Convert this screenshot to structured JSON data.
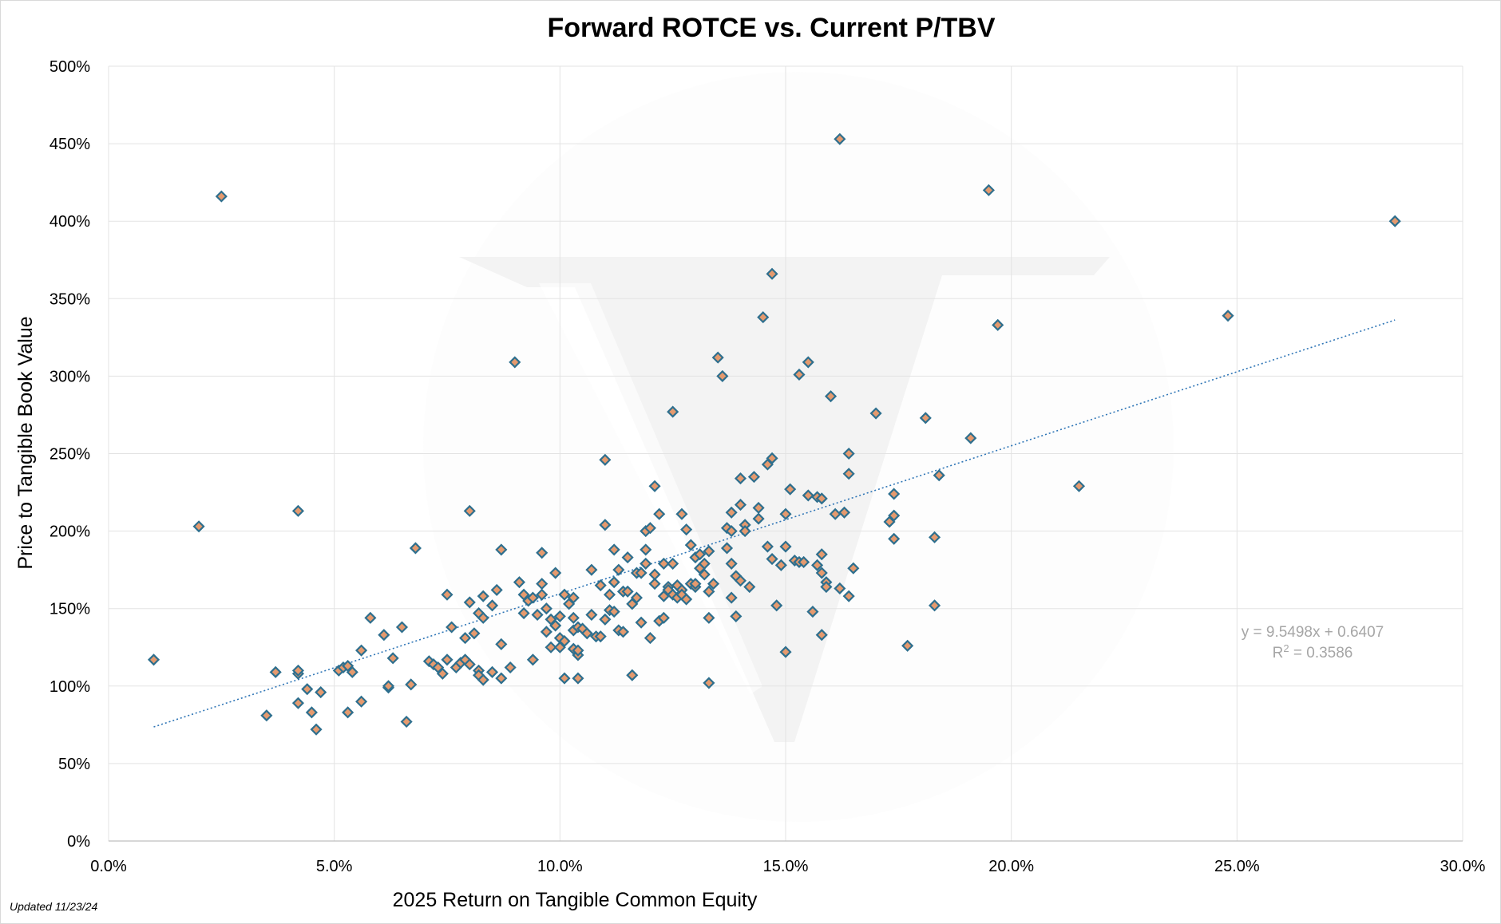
{
  "footnote": "Updated 11/23/24",
  "chart_data": {
    "type": "scatter",
    "title": "Forward ROTCE vs. Current P/TBV",
    "xlabel": "2025 Return on Tangible Common Equity",
    "ylabel": "Price to Tangible Book Value",
    "xlim": [
      0,
      0.3
    ],
    "ylim": [
      0,
      5.0
    ],
    "x_ticks": [
      "0.0%",
      "5.0%",
      "10.0%",
      "15.0%",
      "20.0%",
      "25.0%",
      "30.0%"
    ],
    "y_ticks": [
      "0%",
      "50%",
      "100%",
      "150%",
      "200%",
      "250%",
      "300%",
      "350%",
      "400%",
      "450%",
      "500%"
    ],
    "grid": true,
    "legend": "none",
    "marker": {
      "shape": "diamond",
      "fill": "#E59A6E",
      "edge": "#2E6F8E"
    },
    "trendline": {
      "type": "linear",
      "slope": 9.5498,
      "intercept": 0.6407,
      "x_range": [
        0.01,
        0.285
      ],
      "color": "#2E75B6",
      "equation_label": "y = 9.5498x + 0.6407",
      "r2_label": "R",
      "r2_exponent": "2",
      "r2_value": " = 0.3586"
    },
    "points": [
      [
        0.01,
        1.17
      ],
      [
        0.02,
        2.03
      ],
      [
        0.025,
        4.16
      ],
      [
        0.035,
        0.81
      ],
      [
        0.037,
        1.09
      ],
      [
        0.042,
        1.08
      ],
      [
        0.042,
        1.1
      ],
      [
        0.042,
        0.89
      ],
      [
        0.042,
        2.13
      ],
      [
        0.044,
        0.98
      ],
      [
        0.045,
        0.83
      ],
      [
        0.046,
        0.72
      ],
      [
        0.047,
        0.96
      ],
      [
        0.051,
        1.1
      ],
      [
        0.052,
        1.12
      ],
      [
        0.053,
        1.13
      ],
      [
        0.053,
        0.83
      ],
      [
        0.054,
        1.09
      ],
      [
        0.056,
        0.9
      ],
      [
        0.056,
        1.23
      ],
      [
        0.058,
        1.44
      ],
      [
        0.061,
        1.33
      ],
      [
        0.062,
        0.99
      ],
      [
        0.062,
        1.0
      ],
      [
        0.063,
        1.18
      ],
      [
        0.065,
        1.38
      ],
      [
        0.066,
        0.77
      ],
      [
        0.067,
        1.01
      ],
      [
        0.068,
        1.89
      ],
      [
        0.071,
        1.16
      ],
      [
        0.072,
        1.14
      ],
      [
        0.073,
        1.12
      ],
      [
        0.074,
        1.08
      ],
      [
        0.075,
        1.17
      ],
      [
        0.075,
        1.59
      ],
      [
        0.076,
        1.38
      ],
      [
        0.077,
        1.12
      ],
      [
        0.078,
        1.15
      ],
      [
        0.079,
        1.17
      ],
      [
        0.079,
        1.31
      ],
      [
        0.08,
        1.14
      ],
      [
        0.08,
        1.54
      ],
      [
        0.08,
        2.13
      ],
      [
        0.081,
        1.34
      ],
      [
        0.082,
        1.47
      ],
      [
        0.082,
        1.1
      ],
      [
        0.082,
        1.07
      ],
      [
        0.083,
        1.04
      ],
      [
        0.083,
        1.44
      ],
      [
        0.083,
        1.58
      ],
      [
        0.085,
        1.09
      ],
      [
        0.085,
        1.52
      ],
      [
        0.086,
        1.62
      ],
      [
        0.087,
        1.05
      ],
      [
        0.087,
        1.27
      ],
      [
        0.087,
        1.88
      ],
      [
        0.089,
        1.12
      ],
      [
        0.09,
        3.09
      ],
      [
        0.091,
        1.67
      ],
      [
        0.092,
        1.47
      ],
      [
        0.092,
        1.59
      ],
      [
        0.093,
        1.55
      ],
      [
        0.094,
        1.57
      ],
      [
        0.094,
        1.17
      ],
      [
        0.095,
        1.46
      ],
      [
        0.096,
        1.59
      ],
      [
        0.096,
        1.66
      ],
      [
        0.096,
        1.86
      ],
      [
        0.097,
        1.35
      ],
      [
        0.097,
        1.5
      ],
      [
        0.098,
        1.25
      ],
      [
        0.098,
        1.43
      ],
      [
        0.099,
        1.39
      ],
      [
        0.099,
        1.73
      ],
      [
        0.1,
        1.31
      ],
      [
        0.1,
        1.25
      ],
      [
        0.1,
        1.45
      ],
      [
        0.101,
        1.05
      ],
      [
        0.101,
        1.29
      ],
      [
        0.101,
        1.59
      ],
      [
        0.102,
        1.53
      ],
      [
        0.103,
        1.57
      ],
      [
        0.103,
        1.44
      ],
      [
        0.103,
        1.36
      ],
      [
        0.103,
        1.24
      ],
      [
        0.104,
        1.2
      ],
      [
        0.104,
        1.38
      ],
      [
        0.104,
        1.05
      ],
      [
        0.104,
        1.23
      ],
      [
        0.105,
        1.37
      ],
      [
        0.106,
        1.34
      ],
      [
        0.107,
        1.75
      ],
      [
        0.107,
        1.46
      ],
      [
        0.108,
        1.32
      ],
      [
        0.109,
        1.65
      ],
      [
        0.109,
        1.32
      ],
      [
        0.11,
        1.43
      ],
      [
        0.11,
        2.04
      ],
      [
        0.11,
        2.46
      ],
      [
        0.111,
        1.49
      ],
      [
        0.111,
        1.59
      ],
      [
        0.112,
        1.67
      ],
      [
        0.112,
        1.88
      ],
      [
        0.112,
        1.48
      ],
      [
        0.113,
        1.36
      ],
      [
        0.113,
        1.75
      ],
      [
        0.114,
        1.61
      ],
      [
        0.114,
        1.35
      ],
      [
        0.115,
        1.83
      ],
      [
        0.115,
        1.61
      ],
      [
        0.116,
        1.07
      ],
      [
        0.116,
        1.53
      ],
      [
        0.117,
        1.57
      ],
      [
        0.117,
        1.73
      ],
      [
        0.118,
        1.41
      ],
      [
        0.118,
        1.73
      ],
      [
        0.119,
        2.0
      ],
      [
        0.119,
        1.88
      ],
      [
        0.119,
        1.79
      ],
      [
        0.12,
        1.31
      ],
      [
        0.12,
        2.02
      ],
      [
        0.121,
        1.66
      ],
      [
        0.121,
        1.72
      ],
      [
        0.121,
        2.29
      ],
      [
        0.122,
        2.11
      ],
      [
        0.122,
        1.42
      ],
      [
        0.123,
        1.44
      ],
      [
        0.123,
        1.58
      ],
      [
        0.123,
        1.79
      ],
      [
        0.124,
        1.64
      ],
      [
        0.124,
        1.62
      ],
      [
        0.125,
        1.59
      ],
      [
        0.125,
        1.79
      ],
      [
        0.125,
        2.77
      ],
      [
        0.126,
        1.57
      ],
      [
        0.126,
        1.65
      ],
      [
        0.127,
        2.11
      ],
      [
        0.127,
        1.62
      ],
      [
        0.127,
        1.59
      ],
      [
        0.128,
        1.56
      ],
      [
        0.128,
        2.01
      ],
      [
        0.129,
        1.91
      ],
      [
        0.129,
        1.66
      ],
      [
        0.13,
        1.64
      ],
      [
        0.13,
        1.66
      ],
      [
        0.13,
        1.83
      ],
      [
        0.131,
        1.85
      ],
      [
        0.131,
        1.76
      ],
      [
        0.132,
        1.72
      ],
      [
        0.132,
        1.79
      ],
      [
        0.133,
        1.02
      ],
      [
        0.133,
        1.44
      ],
      [
        0.133,
        1.87
      ],
      [
        0.133,
        1.61
      ],
      [
        0.134,
        1.66
      ],
      [
        0.135,
        3.12
      ],
      [
        0.136,
        3.0
      ],
      [
        0.137,
        2.02
      ],
      [
        0.137,
        1.89
      ],
      [
        0.138,
        1.57
      ],
      [
        0.138,
        2.12
      ],
      [
        0.138,
        2.0
      ],
      [
        0.138,
        1.79
      ],
      [
        0.139,
        1.45
      ],
      [
        0.139,
        1.71
      ],
      [
        0.14,
        2.17
      ],
      [
        0.14,
        1.68
      ],
      [
        0.14,
        2.34
      ],
      [
        0.141,
        2.04
      ],
      [
        0.141,
        2.0
      ],
      [
        0.142,
        1.64
      ],
      [
        0.143,
        2.35
      ],
      [
        0.144,
        2.15
      ],
      [
        0.144,
        2.08
      ],
      [
        0.145,
        3.38
      ],
      [
        0.146,
        1.9
      ],
      [
        0.146,
        2.43
      ],
      [
        0.147,
        2.47
      ],
      [
        0.147,
        3.66
      ],
      [
        0.147,
        1.82
      ],
      [
        0.148,
        1.52
      ],
      [
        0.149,
        1.78
      ],
      [
        0.15,
        1.22
      ],
      [
        0.15,
        2.11
      ],
      [
        0.15,
        1.9
      ],
      [
        0.151,
        2.27
      ],
      [
        0.152,
        1.81
      ],
      [
        0.153,
        3.01
      ],
      [
        0.153,
        1.8
      ],
      [
        0.154,
        1.8
      ],
      [
        0.155,
        2.23
      ],
      [
        0.155,
        3.09
      ],
      [
        0.156,
        1.48
      ],
      [
        0.157,
        1.78
      ],
      [
        0.157,
        2.22
      ],
      [
        0.158,
        1.73
      ],
      [
        0.158,
        1.85
      ],
      [
        0.158,
        1.33
      ],
      [
        0.158,
        2.21
      ],
      [
        0.159,
        1.67
      ],
      [
        0.159,
        1.64
      ],
      [
        0.16,
        2.87
      ],
      [
        0.161,
        2.11
      ],
      [
        0.162,
        1.63
      ],
      [
        0.162,
        4.53
      ],
      [
        0.163,
        2.12
      ],
      [
        0.164,
        2.5
      ],
      [
        0.164,
        1.58
      ],
      [
        0.164,
        2.37
      ],
      [
        0.165,
        1.76
      ],
      [
        0.17,
        2.76
      ],
      [
        0.173,
        2.06
      ],
      [
        0.174,
        2.24
      ],
      [
        0.174,
        2.1
      ],
      [
        0.174,
        1.95
      ],
      [
        0.177,
        1.26
      ],
      [
        0.181,
        2.73
      ],
      [
        0.183,
        1.96
      ],
      [
        0.183,
        1.52
      ],
      [
        0.184,
        2.36
      ],
      [
        0.191,
        2.6
      ],
      [
        0.195,
        4.2
      ],
      [
        0.197,
        3.33
      ],
      [
        0.215,
        2.29
      ],
      [
        0.248,
        3.39
      ],
      [
        0.285,
        4.0
      ]
    ]
  }
}
